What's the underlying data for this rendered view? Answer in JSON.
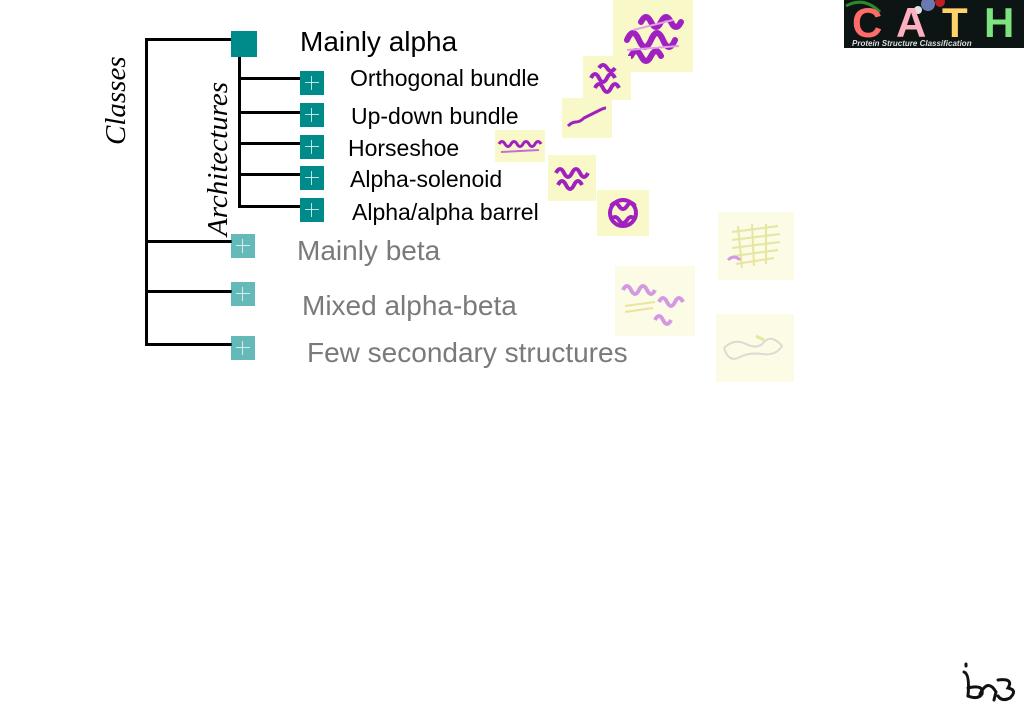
{
  "axis_labels": {
    "classes": "Classes",
    "architectures": "Architectures"
  },
  "classes": [
    {
      "label": "Mainly alpha",
      "expanded": true
    },
    {
      "label": "Mainly beta",
      "expanded": false
    },
    {
      "label": "Mixed alpha-beta",
      "expanded": false
    },
    {
      "label": "Few secondary structures",
      "expanded": false
    }
  ],
  "architectures": [
    {
      "label": "Orthogonal bundle"
    },
    {
      "label": "Up-down bundle"
    },
    {
      "label": "Horseshoe"
    },
    {
      "label": "Alpha-solenoid"
    },
    {
      "label": "Alpha/alpha barrel"
    }
  ],
  "logo": {
    "letters": [
      "C",
      "A",
      "T",
      "H"
    ],
    "tagline": "Protein Structure Classification"
  },
  "colors": {
    "node": "#008b8b",
    "dim_text": "#7a7a7a",
    "structure": "#a020c0",
    "thumb_bg": "#f8f8c8",
    "logo_c": "#ff6a6a",
    "logo_a": "#ffb0c0",
    "logo_t": "#ffd36a",
    "logo_h": "#7ee27e"
  },
  "icons": {
    "expand": "plus-icon",
    "collapsed": "square-icon"
  }
}
